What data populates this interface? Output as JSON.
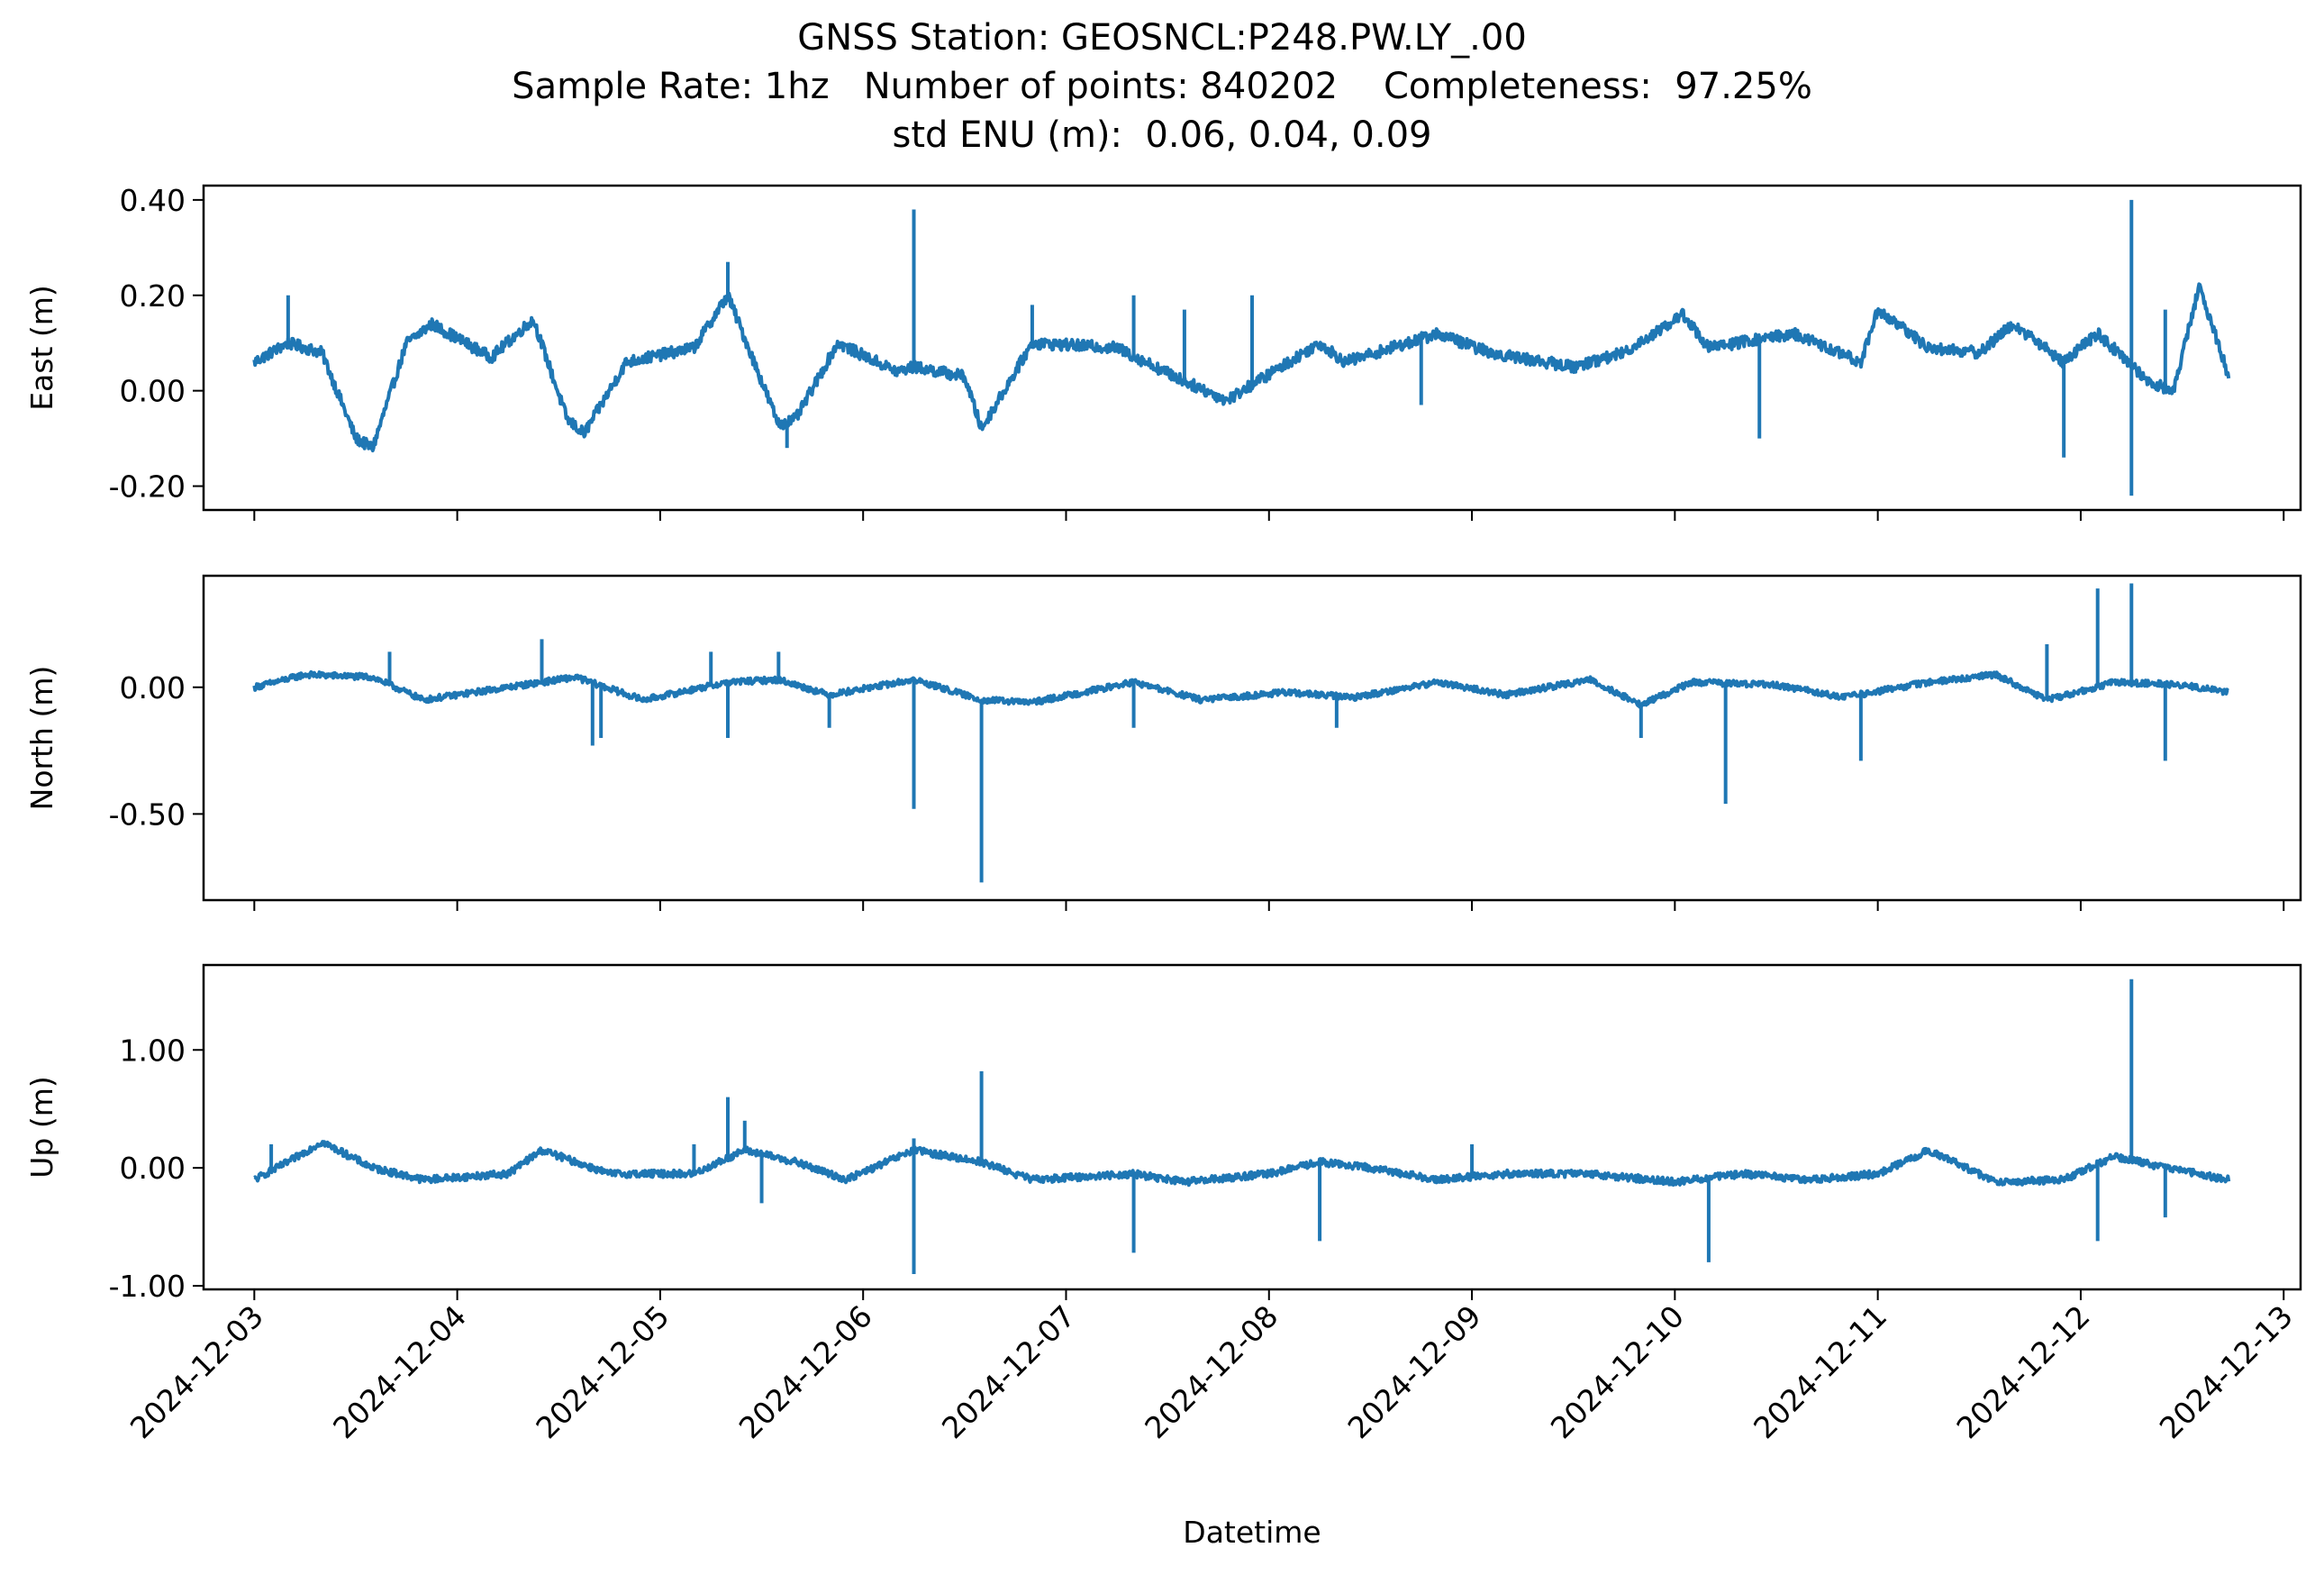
{
  "title_lines": [
    "GNSS Station: GEOSNCL:P248.PW.LY_.00",
    "Sample Rate: 1hz   Number of points: 840202    Completeness:  97.25%",
    "std ENU (m):  0.06, 0.04, 0.09"
  ],
  "xlabel": "Datetime",
  "colors": {
    "series": "#1f77b4",
    "axes": "#000000",
    "background": "#ffffff"
  },
  "chart_data": [
    {
      "type": "line",
      "ylabel": "East (m)",
      "xlim": [
        "2024-12-02T18:00",
        "2024-12-13T02:00"
      ],
      "ylim": [
        -0.25,
        0.43
      ],
      "yticks": [
        -0.2,
        0.0,
        0.2,
        0.4
      ],
      "ytick_labels": [
        "-0.20",
        "0.00",
        "0.20",
        "0.40"
      ],
      "xticks": [
        "2024-12-03",
        "2024-12-04",
        "2024-12-05",
        "2024-12-06",
        "2024-12-07",
        "2024-12-08",
        "2024-12-09",
        "2024-12-10",
        "2024-12-11",
        "2024-12-12",
        "2024-12-13"
      ],
      "xtick_labels_shown": false,
      "grid": false,
      "series": [
        {
          "x_start": "2024-12-03T00:00",
          "x_end": "2024-12-12T17:30",
          "baseline": [
            [
              "2024-12-03T00:00",
              0.06
            ],
            [
              "2024-12-03T04:00",
              0.1
            ],
            [
              "2024-12-03T08:00",
              0.08
            ],
            [
              "2024-12-03T12:00",
              -0.1
            ],
            [
              "2024-12-03T14:00",
              -0.12
            ],
            [
              "2024-12-03T18:00",
              0.1
            ],
            [
              "2024-12-03T21:00",
              0.14
            ],
            [
              "2024-12-04T04:00",
              0.07
            ],
            [
              "2024-12-04T09:00",
              0.15
            ],
            [
              "2024-12-04T13:00",
              -0.06
            ],
            [
              "2024-12-04T15:00",
              -0.09
            ],
            [
              "2024-12-04T20:00",
              0.06
            ],
            [
              "2024-12-05T04:00",
              0.09
            ],
            [
              "2024-12-05T08:00",
              0.2
            ],
            [
              "2024-12-05T14:00",
              -0.07
            ],
            [
              "2024-12-05T16:00",
              -0.06
            ],
            [
              "2024-12-05T21:00",
              0.1
            ],
            [
              "2024-12-06T04:00",
              0.04
            ],
            [
              "2024-12-06T06:00",
              0.05
            ],
            [
              "2024-12-06T12:00",
              0.03
            ],
            [
              "2024-12-06T14:00",
              -0.08
            ],
            [
              "2024-12-06T20:00",
              0.1
            ],
            [
              "2024-12-07T06:00",
              0.09
            ],
            [
              "2024-12-07T14:00",
              0.02
            ],
            [
              "2024-12-07T19:00",
              -0.02
            ],
            [
              "2024-12-08T06:00",
              0.1
            ],
            [
              "2024-12-08T09:00",
              0.06
            ],
            [
              "2024-12-08T20:00",
              0.12
            ],
            [
              "2024-12-09T02:00",
              0.08
            ],
            [
              "2024-12-09T12:00",
              0.05
            ],
            [
              "2024-12-09T18:00",
              0.08
            ],
            [
              "2024-12-10T01:00",
              0.16
            ],
            [
              "2024-12-10T04:00",
              0.09
            ],
            [
              "2024-12-10T14:00",
              0.12
            ],
            [
              "2024-12-10T22:00",
              0.06
            ],
            [
              "2024-12-11T00:00",
              0.17
            ],
            [
              "2024-12-11T06:00",
              0.09
            ],
            [
              "2024-12-11T12:00",
              0.08
            ],
            [
              "2024-12-11T16:00",
              0.14
            ],
            [
              "2024-12-11T22:00",
              0.06
            ],
            [
              "2024-12-12T02:00",
              0.12
            ],
            [
              "2024-12-12T08:00",
              0.02
            ],
            [
              "2024-12-12T11:00",
              0.0
            ],
            [
              "2024-12-12T14:00",
              0.22
            ],
            [
              "2024-12-12T17:30",
              0.03
            ]
          ],
          "noise_amplitude": 0.012,
          "spikes": [
            [
              "2024-12-03T04:00",
              0.2
            ],
            [
              "2024-12-05T08:00",
              0.27
            ],
            [
              "2024-12-05T15:00",
              -0.12
            ],
            [
              "2024-12-06T06:00",
              0.38
            ],
            [
              "2024-12-06T20:00",
              0.18
            ],
            [
              "2024-12-07T08:00",
              0.2
            ],
            [
              "2024-12-07T14:00",
              0.17
            ],
            [
              "2024-12-07T22:00",
              0.2
            ],
            [
              "2024-12-08T18:00",
              -0.03
            ],
            [
              "2024-12-10T10:00",
              -0.1
            ],
            [
              "2024-12-11T22:00",
              -0.14
            ],
            [
              "2024-12-12T06:00",
              0.4
            ],
            [
              "2024-12-12T06:00",
              -0.22
            ],
            [
              "2024-12-12T10:00",
              0.17
            ]
          ]
        }
      ]
    },
    {
      "type": "line",
      "ylabel": "North (m)",
      "xlim": [
        "2024-12-02T18:00",
        "2024-12-13T02:00"
      ],
      "ylim": [
        -0.84,
        0.44
      ],
      "yticks": [
        -0.5,
        0.0
      ],
      "ytick_labels": [
        "-0.50",
        "0.00"
      ],
      "xticks": [
        "2024-12-03",
        "2024-12-04",
        "2024-12-05",
        "2024-12-06",
        "2024-12-07",
        "2024-12-08",
        "2024-12-09",
        "2024-12-10",
        "2024-12-11",
        "2024-12-12",
        "2024-12-13"
      ],
      "xtick_labels_shown": false,
      "grid": false,
      "series": [
        {
          "x_start": "2024-12-03T00:00",
          "x_end": "2024-12-12T17:30",
          "baseline": [
            [
              "2024-12-03T00:00",
              0.0
            ],
            [
              "2024-12-03T06:00",
              0.05
            ],
            [
              "2024-12-03T14:00",
              0.04
            ],
            [
              "2024-12-03T20:00",
              -0.05
            ],
            [
              "2024-12-04T06:00",
              0.0
            ],
            [
              "2024-12-04T14:00",
              0.04
            ],
            [
              "2024-12-04T22:00",
              -0.05
            ],
            [
              "2024-12-05T08:00",
              0.02
            ],
            [
              "2024-12-05T14:00",
              0.03
            ],
            [
              "2024-12-05T20:00",
              -0.03
            ],
            [
              "2024-12-06T06:00",
              0.03
            ],
            [
              "2024-12-06T14:00",
              -0.05
            ],
            [
              "2024-12-06T20:00",
              -0.06
            ],
            [
              "2024-12-07T08:00",
              0.02
            ],
            [
              "2024-12-07T16:00",
              -0.05
            ],
            [
              "2024-12-08T02:00",
              -0.02
            ],
            [
              "2024-12-08T10:00",
              -0.04
            ],
            [
              "2024-12-08T20:00",
              0.02
            ],
            [
              "2024-12-09T04:00",
              -0.03
            ],
            [
              "2024-12-09T14:00",
              0.03
            ],
            [
              "2024-12-09T20:00",
              -0.07
            ],
            [
              "2024-12-10T02:00",
              0.02
            ],
            [
              "2024-12-10T12:00",
              0.01
            ],
            [
              "2024-12-10T20:00",
              -0.04
            ],
            [
              "2024-12-11T06:00",
              0.02
            ],
            [
              "2024-12-11T14:00",
              0.05
            ],
            [
              "2024-12-11T20:00",
              -0.05
            ],
            [
              "2024-12-12T04:00",
              0.02
            ],
            [
              "2024-12-12T12:00",
              0.01
            ],
            [
              "2024-12-12T17:30",
              -0.02
            ]
          ],
          "noise_amplitude": 0.012,
          "spikes": [
            [
              "2024-12-03T16:00",
              0.14
            ],
            [
              "2024-12-04T10:00",
              0.19
            ],
            [
              "2024-12-04T16:00",
              -0.23
            ],
            [
              "2024-12-04T17:00",
              -0.2
            ],
            [
              "2024-12-05T06:00",
              0.14
            ],
            [
              "2024-12-05T08:00",
              -0.2
            ],
            [
              "2024-12-05T14:00",
              0.14
            ],
            [
              "2024-12-05T20:00",
              -0.16
            ],
            [
              "2024-12-06T06:00",
              -0.48
            ],
            [
              "2024-12-06T14:00",
              -0.77
            ],
            [
              "2024-12-07T08:00",
              -0.16
            ],
            [
              "2024-12-08T08:00",
              -0.16
            ],
            [
              "2024-12-09T20:00",
              -0.2
            ],
            [
              "2024-12-10T06:00",
              -0.46
            ],
            [
              "2024-12-10T22:00",
              -0.29
            ],
            [
              "2024-12-11T20:00",
              0.17
            ],
            [
              "2024-12-12T02:00",
              0.39
            ],
            [
              "2024-12-12T06:00",
              0.41
            ],
            [
              "2024-12-12T10:00",
              -0.29
            ]
          ]
        }
      ]
    },
    {
      "type": "line",
      "ylabel": "Up (m)",
      "xlim": [
        "2024-12-02T18:00",
        "2024-12-13T02:00"
      ],
      "ylim": [
        -1.03,
        1.72
      ],
      "yticks": [
        -1.0,
        0.0,
        1.0
      ],
      "ytick_labels": [
        "-1.00",
        "0.00",
        "1.00"
      ],
      "xticks": [
        "2024-12-03",
        "2024-12-04",
        "2024-12-05",
        "2024-12-06",
        "2024-12-07",
        "2024-12-08",
        "2024-12-09",
        "2024-12-10",
        "2024-12-11",
        "2024-12-12",
        "2024-12-13"
      ],
      "xtick_labels": [
        "2024-12-03",
        "2024-12-04",
        "2024-12-05",
        "2024-12-06",
        "2024-12-07",
        "2024-12-08",
        "2024-12-09",
        "2024-12-10",
        "2024-12-11",
        "2024-12-12",
        "2024-12-13"
      ],
      "xtick_labels_shown": true,
      "grid": false,
      "series": [
        {
          "x_start": "2024-12-03T00:00",
          "x_end": "2024-12-12T17:30",
          "baseline": [
            [
              "2024-12-03T00:00",
              -0.1
            ],
            [
              "2024-12-03T04:00",
              0.05
            ],
            [
              "2024-12-03T08:00",
              0.22
            ],
            [
              "2024-12-03T14:00",
              0.0
            ],
            [
              "2024-12-03T20:00",
              -0.1
            ],
            [
              "2024-12-04T06:00",
              -0.05
            ],
            [
              "2024-12-04T10:00",
              0.15
            ],
            [
              "2024-12-04T18:00",
              -0.05
            ],
            [
              "2024-12-05T04:00",
              -0.05
            ],
            [
              "2024-12-05T10:00",
              0.15
            ],
            [
              "2024-12-05T16:00",
              0.05
            ],
            [
              "2024-12-05T22:00",
              -0.1
            ],
            [
              "2024-12-06T06:00",
              0.15
            ],
            [
              "2024-12-06T14:00",
              0.05
            ],
            [
              "2024-12-06T20:00",
              -0.1
            ],
            [
              "2024-12-07T08:00",
              -0.05
            ],
            [
              "2024-12-07T14:00",
              -0.12
            ],
            [
              "2024-12-08T00:00",
              -0.05
            ],
            [
              "2024-12-08T06:00",
              0.05
            ],
            [
              "2024-12-08T12:00",
              0.0
            ],
            [
              "2024-12-08T20:00",
              -0.1
            ],
            [
              "2024-12-09T04:00",
              -0.05
            ],
            [
              "2024-12-09T14:00",
              -0.05
            ],
            [
              "2024-12-10T00:00",
              -0.12
            ],
            [
              "2024-12-10T08:00",
              -0.05
            ],
            [
              "2024-12-10T16:00",
              -0.1
            ],
            [
              "2024-12-11T00:00",
              -0.05
            ],
            [
              "2024-12-11T06:00",
              0.15
            ],
            [
              "2024-12-11T14:00",
              -0.12
            ],
            [
              "2024-12-11T22:00",
              -0.1
            ],
            [
              "2024-12-12T04:00",
              0.1
            ],
            [
              "2024-12-12T10:00",
              0.0
            ],
            [
              "2024-12-12T17:30",
              -0.1
            ]
          ],
          "noise_amplitude": 0.03,
          "spikes": [
            [
              "2024-12-03T02:00",
              0.2
            ],
            [
              "2024-12-05T04:00",
              0.2
            ],
            [
              "2024-12-05T08:00",
              0.6
            ],
            [
              "2024-12-05T10:00",
              0.4
            ],
            [
              "2024-12-05T12:00",
              -0.3
            ],
            [
              "2024-12-06T06:00",
              -0.9
            ],
            [
              "2024-12-06T06:00",
              0.25
            ],
            [
              "2024-12-06T14:00",
              0.82
            ],
            [
              "2024-12-07T08:00",
              -0.72
            ],
            [
              "2024-12-08T06:00",
              -0.62
            ],
            [
              "2024-12-09T00:00",
              0.2
            ],
            [
              "2024-12-10T04:00",
              -0.8
            ],
            [
              "2024-12-12T02:00",
              -0.62
            ],
            [
              "2024-12-12T06:00",
              1.6
            ],
            [
              "2024-12-12T10:00",
              -0.42
            ]
          ]
        }
      ]
    }
  ]
}
